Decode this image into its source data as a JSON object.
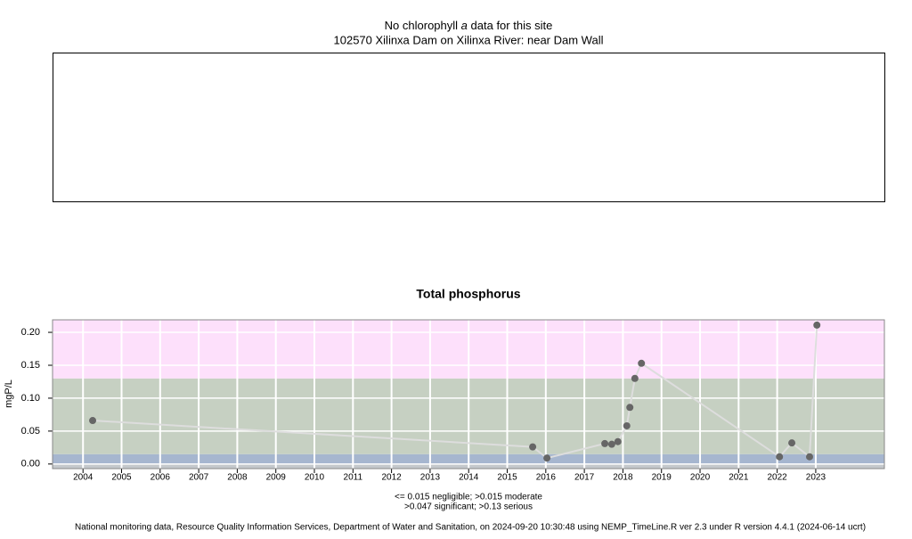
{
  "chart_data": [
    {
      "type": "empty",
      "title_parts": [
        "No chlorophyll",
        "a",
        "data for this site"
      ],
      "subtitle": "102570 Xilinxa Dam on Xilinxa River: near Dam Wall"
    },
    {
      "type": "line",
      "title": "Total phosphorus",
      "ylabel": "mgP/L",
      "x": [
        2004.25,
        2015.66,
        2016.03,
        2017.53,
        2017.71,
        2017.87,
        2018.1,
        2018.18,
        2018.31,
        2018.48,
        2022.06,
        2022.38,
        2022.84,
        2023.03
      ],
      "series": [
        {
          "values": [
            0.066,
            0.026,
            0.009,
            0.031,
            0.03,
            0.034,
            0.058,
            0.086,
            0.13,
            0.153,
            0.011,
            0.032,
            0.011,
            0.211
          ],
          "color": "#666666",
          "line_color": "#dddddd"
        }
      ],
      "xlim": [
        2003.21,
        2024.78
      ],
      "xticks": [
        2004,
        2005,
        2006,
        2007,
        2008,
        2009,
        2010,
        2011,
        2012,
        2013,
        2014,
        2015,
        2016,
        2017,
        2018,
        2019,
        2020,
        2021,
        2022,
        2023
      ],
      "ylim": [
        -0.007,
        0.219
      ],
      "yticks": [
        {
          "value": 0,
          "label": "0.00"
        },
        {
          "value": 0.05,
          "label": "0.05"
        },
        {
          "value": 0.1,
          "label": "0.10"
        },
        {
          "value": 0.15,
          "label": "0.15"
        },
        {
          "value": 0.2,
          "label": "0.20"
        }
      ],
      "bands": [
        {
          "from": 0,
          "to": 0.015,
          "color": "#a6b6cf"
        },
        {
          "from": 0.015,
          "to": 0.13,
          "color": "#c6d0c2"
        },
        {
          "from": 0.13,
          "to": 0.219,
          "color": "#fde0fb"
        }
      ],
      "below_zero_color": "#c4c8cc",
      "grid": true,
      "notes": [
        "<= 0.015 negligible; >0.015 moderate",
        ">0.047 significant; >0.13 serious"
      ]
    }
  ],
  "footer": "National monitoring data, Resource Quality Information Services, Department of Water and Sanitation, on 2024-09-20 10:30:48 using NEMP_TimeLine.R ver 2.3 under R version 4.4.1 (2024-06-14 ucrt)"
}
